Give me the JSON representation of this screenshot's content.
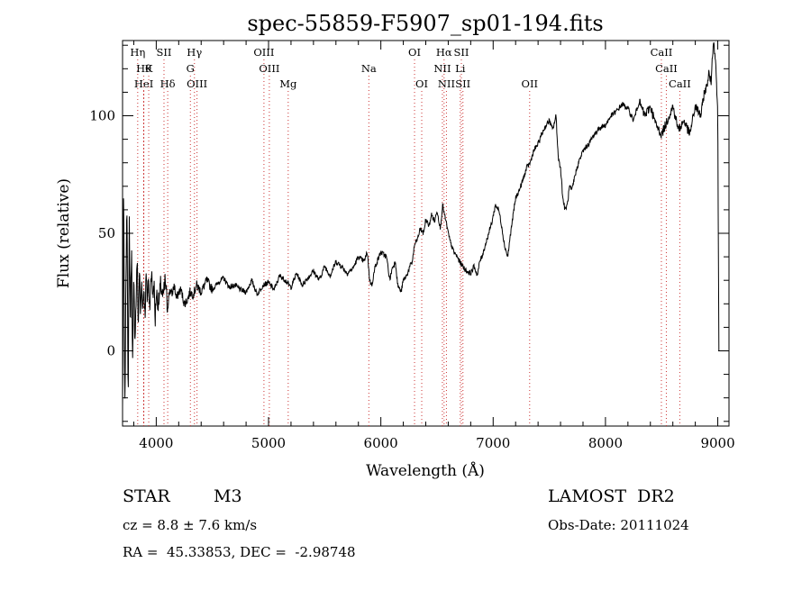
{
  "chart_data": {
    "type": "line",
    "title": "spec-55859-F5907_sp01-194.fits",
    "xlabel": "Wavelength (Å)",
    "ylabel": "Flux (relative)",
    "xlim": [
      3700,
      9100
    ],
    "ylim": [
      -32,
      132
    ],
    "x_ticks": [
      4000,
      5000,
      6000,
      7000,
      8000,
      9000
    ],
    "y_ticks": [
      0,
      50,
      100
    ],
    "grid": false,
    "line_color": "#000000",
    "marker_color": "#cc3333",
    "series": [
      {
        "x": [
          3700,
          3710,
          3720,
          3730,
          3740,
          3750,
          3760,
          3770,
          3780,
          3790,
          3800,
          3810,
          3820,
          3830,
          3840,
          3850,
          3860,
          3870,
          3880,
          3890,
          3900,
          3910,
          3920,
          3930,
          3940,
          3950,
          3960,
          3970,
          3980,
          3990,
          4000,
          4020,
          4040,
          4060,
          4080,
          4100,
          4120,
          4140,
          4160,
          4180,
          4200,
          4220,
          4250,
          4280,
          4300,
          4330,
          4360,
          4400,
          4450,
          4500,
          4550,
          4600,
          4650,
          4700,
          4750,
          4800,
          4850,
          4900,
          4950,
          5000,
          5050,
          5100,
          5150,
          5200,
          5250,
          5300,
          5350,
          5400,
          5450,
          5500,
          5550,
          5600,
          5650,
          5700,
          5750,
          5800,
          5850,
          5880,
          5900,
          5920,
          5950,
          6000,
          6050,
          6080,
          6100,
          6130,
          6150,
          6180,
          6200,
          6230,
          6260,
          6280,
          6300,
          6330,
          6350,
          6380,
          6400,
          6430,
          6450,
          6480,
          6500,
          6530,
          6550,
          6570,
          6580,
          6600,
          6620,
          6650,
          6680,
          6700,
          6730,
          6760,
          6800,
          6830,
          6860,
          6880,
          6900,
          6930,
          6960,
          6990,
          7020,
          7050,
          7080,
          7100,
          7130,
          7150,
          7170,
          7200,
          7230,
          7260,
          7280,
          7300,
          7330,
          7360,
          7400,
          7430,
          7460,
          7500,
          7530,
          7560,
          7580,
          7600,
          7620,
          7640,
          7660,
          7680,
          7700,
          7730,
          7760,
          7800,
          7850,
          7900,
          7950,
          8000,
          8050,
          8100,
          8150,
          8200,
          8250,
          8300,
          8350,
          8400,
          8450,
          8500,
          8550,
          8600,
          8650,
          8700,
          8750,
          8800,
          8850,
          8880,
          8900,
          8920,
          8940,
          8960,
          8980,
          9000,
          9010
        ],
        "y": [
          -25,
          70,
          -30,
          30,
          65,
          -25,
          55,
          10,
          45,
          -5,
          30,
          5,
          20,
          40,
          10,
          35,
          15,
          30,
          18,
          28,
          15,
          32,
          22,
          30,
          20,
          26,
          35,
          22,
          30,
          12,
          25,
          20,
          28,
          22,
          30,
          18,
          26,
          24,
          28,
          22,
          25,
          26,
          20,
          22,
          25,
          24,
          28,
          25,
          30,
          26,
          29,
          31,
          27,
          28,
          26,
          25,
          30,
          24,
          28,
          29,
          26,
          32,
          30,
          27,
          33,
          28,
          31,
          34,
          30,
          36,
          32,
          38,
          36,
          33,
          35,
          40,
          38,
          42,
          30,
          28,
          36,
          42,
          40,
          30,
          35,
          38,
          28,
          25,
          30,
          32,
          36,
          38,
          45,
          48,
          52,
          50,
          56,
          53,
          58,
          55,
          60,
          52,
          62,
          57,
          55,
          50,
          46,
          42,
          40,
          38,
          36,
          34,
          33,
          36,
          32,
          38,
          40,
          45,
          50,
          55,
          62,
          60,
          52,
          45,
          40,
          48,
          55,
          65,
          68,
          72,
          75,
          78,
          80,
          85,
          88,
          92,
          95,
          98,
          94,
          100,
          82,
          78,
          65,
          60,
          62,
          70,
          68,
          75,
          80,
          85,
          88,
          92,
          95,
          96,
          100,
          102,
          105,
          103,
          98,
          106,
          100,
          104,
          96,
          92,
          98,
          104,
          94,
          98,
          92,
          104,
          100,
          110,
          112,
          118,
          114,
          132,
          125,
          100,
          0
        ]
      }
    ],
    "line_markers": [
      {
        "wl": 3835,
        "label": "Hη",
        "row": 0
      },
      {
        "wl": 3889,
        "label": "Hθ",
        "row": 1
      },
      {
        "wl": 3933,
        "label": "K",
        "row": 1
      },
      {
        "wl": 3889,
        "label": "HeI",
        "row": 2
      },
      {
        "wl": 4069,
        "label": "SII",
        "row": 0
      },
      {
        "wl": 4102,
        "label": "Hδ",
        "row": 2
      },
      {
        "wl": 4340,
        "label": "Hγ",
        "row": 0
      },
      {
        "wl": 4304,
        "label": "G",
        "row": 1
      },
      {
        "wl": 4363,
        "label": "OIII",
        "row": 2
      },
      {
        "wl": 4959,
        "label": "OIII",
        "row": 0
      },
      {
        "wl": 5007,
        "label": "OIII",
        "row": 1
      },
      {
        "wl": 5175,
        "label": "Mg",
        "row": 2
      },
      {
        "wl": 5893,
        "label": "Na",
        "row": 1
      },
      {
        "wl": 6300,
        "label": "OI",
        "row": 0
      },
      {
        "wl": 6364,
        "label": "OI",
        "row": 2
      },
      {
        "wl": 6563,
        "label": "Hα",
        "row": 0
      },
      {
        "wl": 6548,
        "label": "NII",
        "row": 1
      },
      {
        "wl": 6584,
        "label": "NII",
        "row": 2
      },
      {
        "wl": 6717,
        "label": "SII",
        "row": 0
      },
      {
        "wl": 6707,
        "label": "Li",
        "row": 1
      },
      {
        "wl": 6731,
        "label": "SII",
        "row": 2
      },
      {
        "wl": 7325,
        "label": "OII",
        "row": 2
      },
      {
        "wl": 8498,
        "label": "CaII",
        "row": 0
      },
      {
        "wl": 8542,
        "label": "CaII",
        "row": 1
      },
      {
        "wl": 8662,
        "label": "CaII",
        "row": 2
      }
    ]
  },
  "info": {
    "class_label": "STAR",
    "subclass": "M3",
    "survey": "LAMOST  DR2",
    "cz": "cz = 8.8 ± 7.6 km/s",
    "obs_date": "Obs-Date: 20111024",
    "coords": "RA =  45.33853, DEC =  -2.98748"
  }
}
